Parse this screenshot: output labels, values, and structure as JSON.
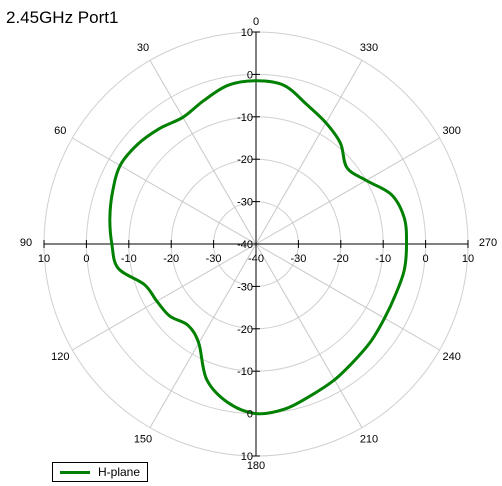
{
  "chart_data": {
    "type": "polar-line",
    "title": "2.45GHz Port1",
    "radial_range": [
      -40,
      10
    ],
    "radial_ticks": [
      10,
      0,
      -10,
      -20,
      -30,
      -40
    ],
    "angle_ticks": [
      "0",
      "30",
      "60",
      "90",
      "120",
      "150",
      "180",
      "210",
      "240",
      "270",
      "300",
      "330"
    ],
    "angle_direction": "counterclockwise",
    "zero_angle_position": "top",
    "grid": true,
    "legend": "bottom-left",
    "series": [
      {
        "name": "H-plane",
        "color": "#008000",
        "angles": [
          0,
          10,
          20,
          30,
          40,
          50,
          60,
          70,
          80,
          90,
          100,
          110,
          120,
          130,
          140,
          150,
          160,
          170,
          180,
          190,
          200,
          210,
          220,
          230,
          240,
          250,
          260,
          270,
          280,
          290,
          300,
          310,
          320,
          330,
          340,
          350
        ],
        "values": [
          -1.5,
          -2,
          -4,
          -5.5,
          -4.5,
          -3.5,
          -3,
          -4,
          -5,
          -6,
          -7,
          -12,
          -13,
          -13.5,
          -15,
          -13,
          -6,
          -2,
          0,
          -0.5,
          -2,
          -3,
          -4,
          -4.5,
          -5,
          -5,
          -4.5,
          -4.5,
          -4.5,
          -6,
          -10,
          -12,
          -9,
          -7,
          -5,
          -2
        ]
      }
    ]
  }
}
